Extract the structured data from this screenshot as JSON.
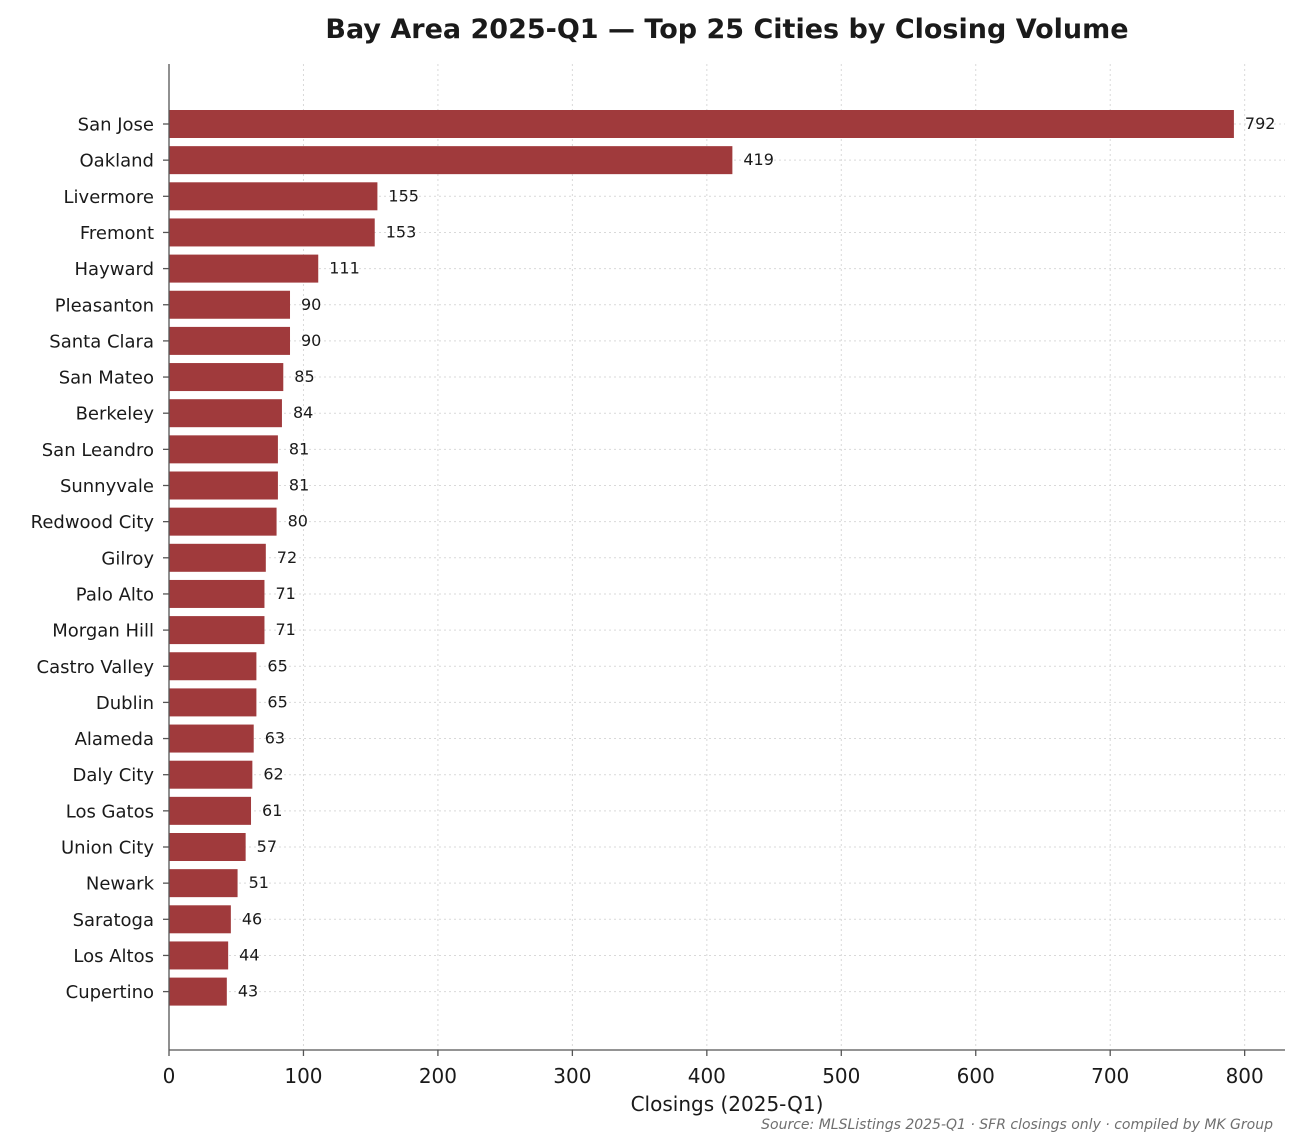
{
  "chart_data": {
    "type": "bar",
    "orientation": "horizontal",
    "title": "Bay Area 2025-Q1 — Top 25 Cities by Closing Volume",
    "xlabel": "Closings (2025-Q1)",
    "ylabel": "",
    "xlim": [
      0,
      830
    ],
    "xticks": [
      0,
      100,
      200,
      300,
      400,
      500,
      600,
      700,
      800
    ],
    "grid": true,
    "bar_color": "#a03a3c",
    "categories": [
      "San Jose",
      "Oakland",
      "Livermore",
      "Fremont",
      "Hayward",
      "Pleasanton",
      "Santa Clara",
      "San Mateo",
      "Berkeley",
      "San Leandro",
      "Sunnyvale",
      "Redwood City",
      "Gilroy",
      "Palo Alto",
      "Morgan Hill",
      "Castro Valley",
      "Dublin",
      "Alameda",
      "Daly City",
      "Los Gatos",
      "Union City",
      "Newark",
      "Saratoga",
      "Los Altos",
      "Cupertino"
    ],
    "values": [
      792,
      419,
      155,
      153,
      111,
      90,
      90,
      85,
      84,
      81,
      81,
      80,
      72,
      71,
      71,
      65,
      65,
      63,
      62,
      61,
      57,
      51,
      46,
      44,
      43
    ],
    "source": "Source: MLSListings 2025-Q1 · SFR closings only · compiled by MK Group"
  }
}
